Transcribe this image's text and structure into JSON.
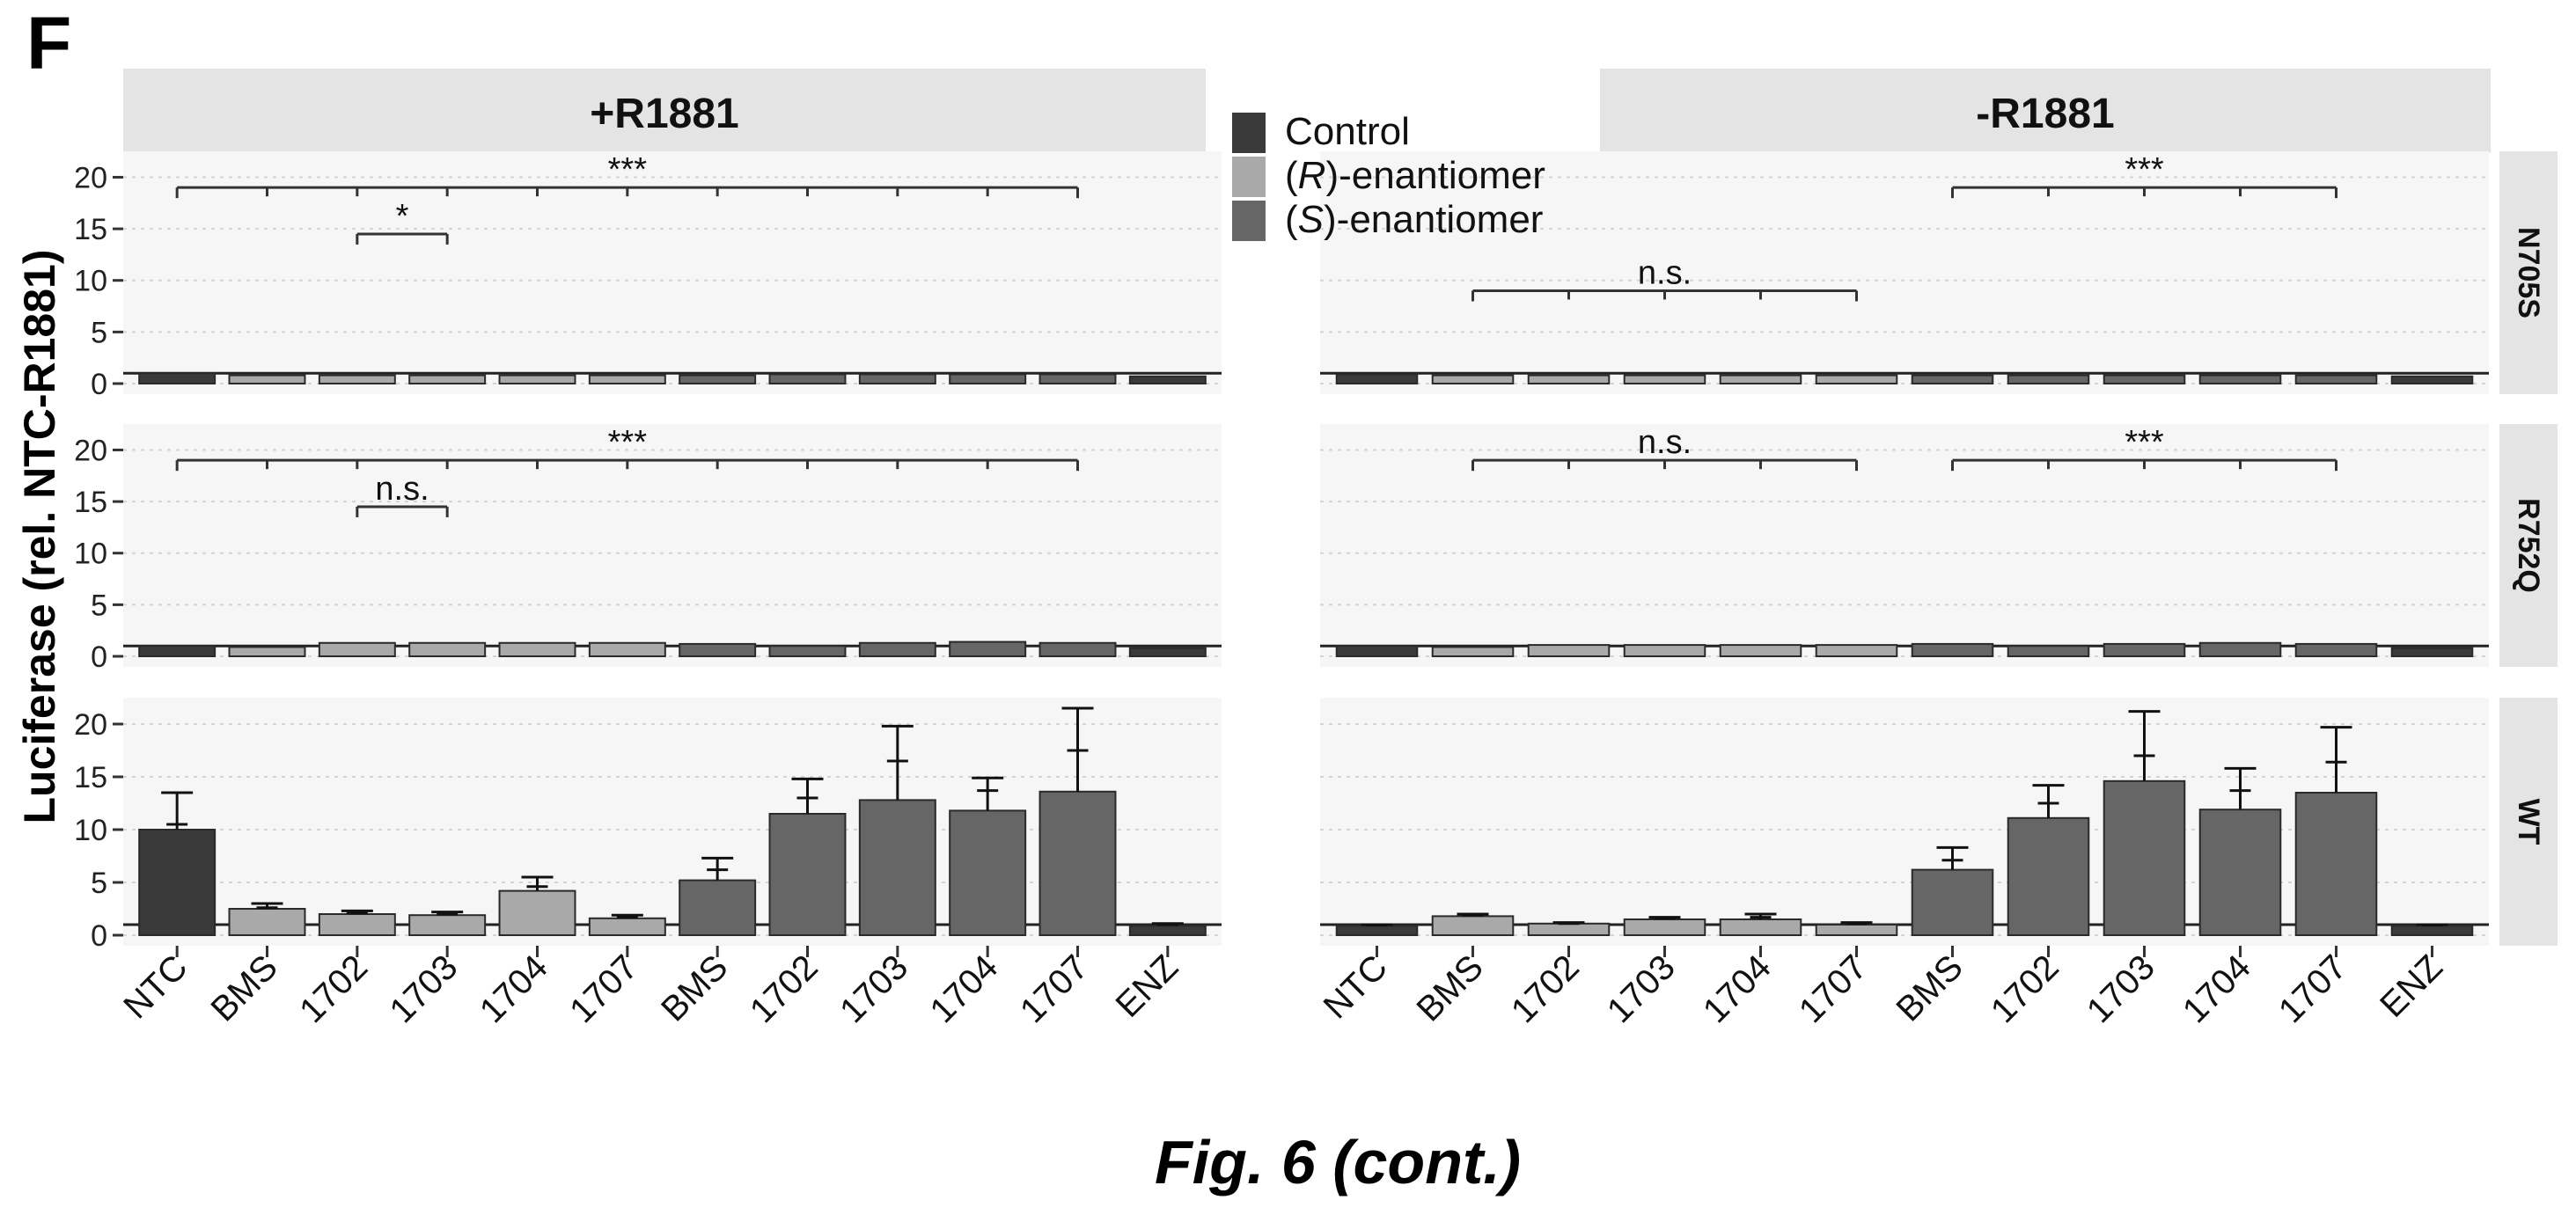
{
  "figure": {
    "panel_label": "F",
    "caption": "Fig. 6 (cont.)"
  },
  "chart_data": {
    "type": "bar",
    "ylabel": "Luciferase (rel. NTC-R1881)",
    "xlabel": "",
    "ylim": [
      0,
      22
    ],
    "yticks": [
      0,
      5,
      10,
      15,
      20
    ],
    "grid": true,
    "legend_position": "top-center",
    "legend": [
      {
        "key": "control",
        "label": "Control",
        "color": "#3a3a3a"
      },
      {
        "key": "r",
        "label_pre": "(",
        "label_italic": "R",
        "label_post": ")-enantiomer",
        "color": "#a9a9a9"
      },
      {
        "key": "s",
        "label_pre": "(",
        "label_italic": "S",
        "label_post": ")-enantiomer",
        "color": "#666666"
      }
    ],
    "columns": [
      {
        "key": "plus",
        "title": "+R1881"
      },
      {
        "key": "minus",
        "title": "-R1881"
      }
    ],
    "rows": [
      {
        "key": "N705S",
        "label": "N705S"
      },
      {
        "key": "R752Q",
        "label": "R752Q"
      },
      {
        "key": "WT",
        "label": "WT"
      }
    ],
    "categories": [
      "NTC",
      "BMS",
      "1702",
      "1703",
      "1704",
      "1707",
      "BMS",
      "1702",
      "1703",
      "1704",
      "1707",
      "ENZ"
    ],
    "category_groups": [
      "control",
      "r",
      "r",
      "r",
      "r",
      "r",
      "s",
      "s",
      "s",
      "s",
      "s",
      "control"
    ],
    "values": {
      "plus": {
        "N705S": [
          1.0,
          0.8,
          0.8,
          0.8,
          0.8,
          0.8,
          0.8,
          0.9,
          0.9,
          0.9,
          0.9,
          0.7
        ],
        "R752Q": [
          1.0,
          0.9,
          1.3,
          1.3,
          1.3,
          1.3,
          1.2,
          1.0,
          1.3,
          1.4,
          1.3,
          0.8
        ],
        "WT": [
          10.0,
          2.5,
          2.0,
          1.9,
          4.2,
          1.6,
          5.2,
          11.5,
          12.8,
          11.8,
          13.6,
          0.9
        ]
      },
      "minus": {
        "N705S": [
          0.9,
          0.8,
          0.8,
          0.8,
          0.8,
          0.8,
          0.8,
          0.8,
          0.8,
          0.8,
          0.8,
          0.7
        ],
        "R752Q": [
          1.0,
          0.9,
          1.1,
          1.1,
          1.1,
          1.1,
          1.2,
          1.0,
          1.2,
          1.3,
          1.2,
          0.8
        ],
        "WT": [
          0.9,
          1.8,
          1.1,
          1.5,
          1.5,
          1.0,
          6.2,
          11.1,
          14.6,
          11.9,
          13.5,
          0.9
        ]
      }
    },
    "error_tops": {
      "plus": {
        "WT": [
          13.5,
          3.0,
          2.3,
          2.2,
          5.5,
          1.9,
          7.3,
          14.8,
          19.8,
          14.9,
          21.5,
          1.1
        ]
      },
      "minus": {
        "WT": [
          1.0,
          2.0,
          1.2,
          1.7,
          2.0,
          1.2,
          8.3,
          14.2,
          21.2,
          15.8,
          19.7,
          1.0
        ]
      }
    },
    "error_means": {
      "plus": {
        "WT": [
          10.5,
          2.6,
          2.1,
          2.0,
          4.6,
          1.7,
          6.2,
          13.0,
          16.5,
          13.7,
          17.5,
          1.0
        ]
      },
      "minus": {
        "WT": [
          0.95,
          1.9,
          1.1,
          1.6,
          1.7,
          1.1,
          7.1,
          12.5,
          17.0,
          13.7,
          16.4,
          0.95
        ]
      }
    },
    "significance": {
      "plus": {
        "N705S": [
          {
            "from": 0,
            "to": 10,
            "level": 19,
            "label": "***",
            "inner_ticks": [
              1,
              2,
              3,
              4,
              5,
              6,
              7,
              8,
              9
            ]
          },
          {
            "from": 2,
            "to": 3,
            "level": 14.5,
            "label": "*",
            "inner_ticks": []
          }
        ],
        "R752Q": [
          {
            "from": 0,
            "to": 10,
            "level": 19,
            "label": "***",
            "inner_ticks": [
              1,
              2,
              3,
              4,
              5,
              6,
              7,
              8,
              9
            ]
          },
          {
            "from": 2,
            "to": 3,
            "level": 14.5,
            "label": "n.s.",
            "inner_ticks": []
          }
        ],
        "WT": []
      },
      "minus": {
        "N705S": [
          {
            "from": 6,
            "to": 10,
            "level": 19,
            "label": "***",
            "inner_ticks": [
              7,
              8,
              9
            ]
          },
          {
            "from": 1,
            "to": 5,
            "level": 9,
            "label": "n.s.",
            "inner_ticks": [
              2,
              3,
              4
            ]
          }
        ],
        "R752Q": [
          {
            "from": 1,
            "to": 5,
            "level": 19,
            "label": "n.s.",
            "inner_ticks": [
              2,
              3,
              4
            ]
          },
          {
            "from": 6,
            "to": 10,
            "level": 19,
            "label": "***",
            "inner_ticks": [
              7,
              8,
              9
            ]
          }
        ],
        "WT": []
      }
    }
  }
}
